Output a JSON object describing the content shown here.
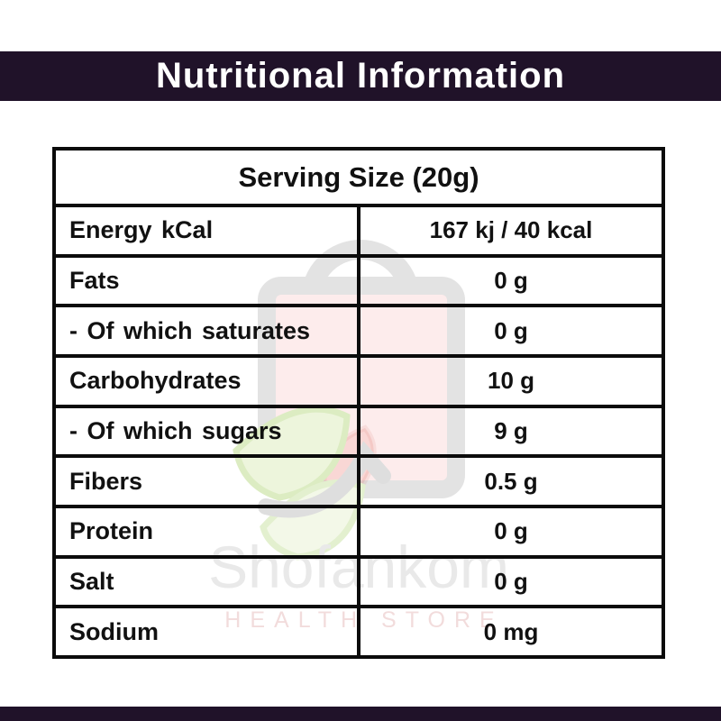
{
  "colors": {
    "band": "#201229",
    "accent_red": "#fa0202",
    "border_black": "#0b0b0b",
    "watermark_gray": "#e3e3e3",
    "watermark_pink": "#fdecec",
    "watermark_green": "#edf5dc"
  },
  "header": {
    "title": "Nutritional Information"
  },
  "table": {
    "serving_header": "Serving Size (20g)",
    "rows": [
      {
        "label": "Energy kCal",
        "value": "167 kj / 40 kcal"
      },
      {
        "label": "Fats",
        "value": "0 g"
      },
      {
        "label": "- Of which saturates",
        "value": "0 g"
      },
      {
        "label": "Carbohydrates",
        "value": "10 g"
      },
      {
        "label": "- Of which sugars",
        "value": "9 g"
      },
      {
        "label": "Fibers",
        "value": "0.5 g"
      },
      {
        "label": "Protein",
        "value": "0 g"
      },
      {
        "label": "Salt",
        "value": "0 g"
      },
      {
        "label": "Sodium",
        "value": "0 mg"
      }
    ]
  },
  "watermark": {
    "brand": "Shofankom",
    "tagline": "HEALTH STORE"
  }
}
